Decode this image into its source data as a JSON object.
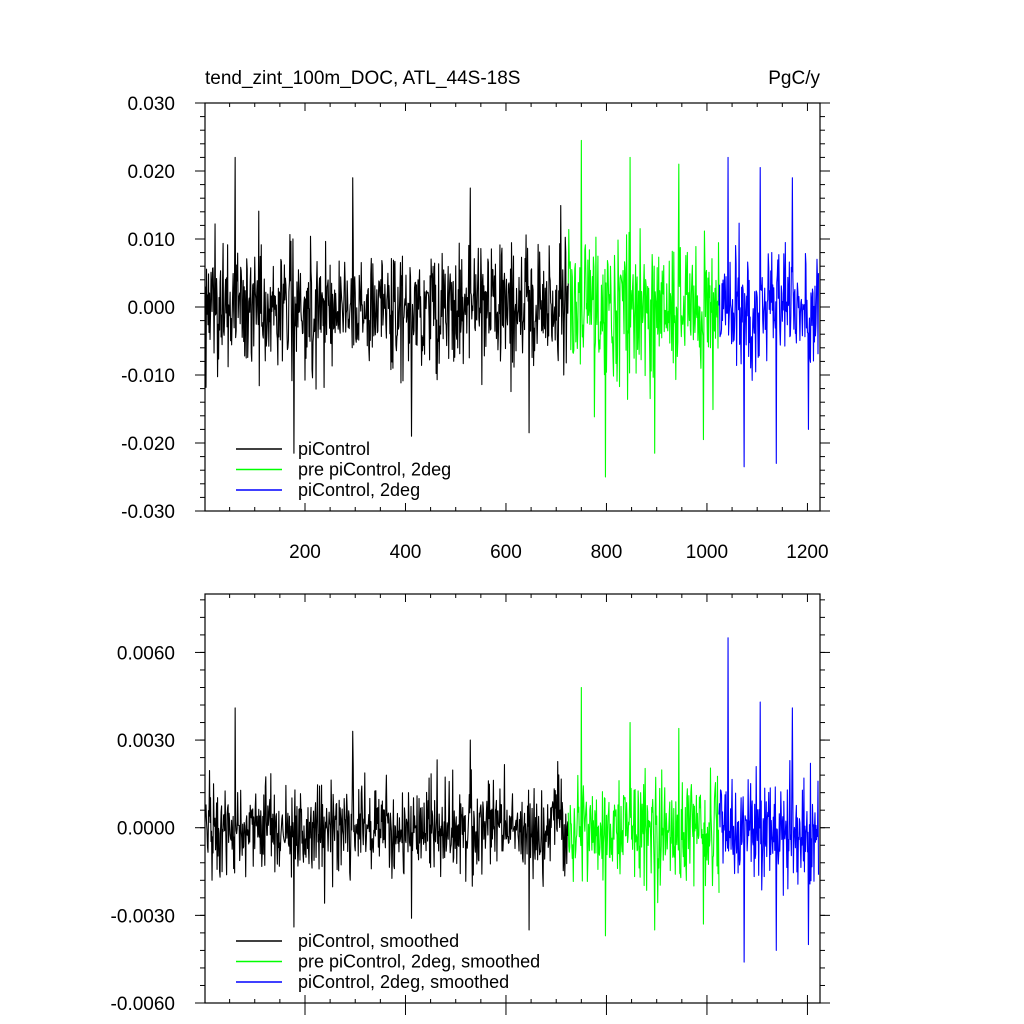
{
  "chart_data": [
    {
      "type": "line",
      "title": "tend_zint_100m_DOC, ATL_44S-18S",
      "units_label": "PgC/y",
      "xlabel": "",
      "ylabel": "",
      "xlim": [
        1,
        1225
      ],
      "ylim": [
        -0.03,
        0.03
      ],
      "x_ticks": [
        200,
        400,
        600,
        800,
        1000,
        1200
      ],
      "x_tick_labels": [
        "200",
        "400",
        "600",
        "800",
        "1000",
        "1200"
      ],
      "y_ticks": [
        -0.03,
        -0.02,
        -0.01,
        0.0,
        0.01,
        0.02,
        0.03
      ],
      "y_tick_labels": [
        "-0.030",
        "-0.020",
        "-0.010",
        "0.000",
        "0.010",
        "0.020",
        "0.030"
      ],
      "grid": false,
      "legend_position": "bottom-left",
      "series": [
        {
          "name": "piControl",
          "color": "#000000",
          "x_range": [
            1,
            724
          ],
          "amplitude": 0.0085,
          "peak_values": [
            0.022,
            -0.0215,
            0.019,
            -0.019,
            0.0175,
            -0.0185
          ]
        },
        {
          "name": "pre piControl, 2deg",
          "color": "#00ff00",
          "x_range": [
            724,
            1024
          ],
          "amplitude": 0.0095,
          "peak_values": [
            0.0245,
            -0.025,
            0.022,
            -0.0215,
            0.021,
            -0.0195
          ]
        },
        {
          "name": "piControl, 2deg",
          "color": "#0000ff",
          "x_range": [
            1024,
            1222
          ],
          "amplitude": 0.0085,
          "peak_values": [
            0.022,
            -0.0235,
            0.0205,
            -0.023,
            0.019,
            -0.018
          ]
        }
      ]
    },
    {
      "type": "line",
      "title": "",
      "xlabel": "",
      "ylabel": "",
      "xlim": [
        1,
        1225
      ],
      "ylim": [
        -0.006,
        0.008
      ],
      "x_ticks": [
        200,
        400,
        600,
        800,
        1000,
        1200
      ],
      "x_tick_labels": [],
      "y_ticks": [
        -0.006,
        -0.003,
        0.0,
        0.003,
        0.006
      ],
      "y_tick_labels": [
        "-0.0060",
        "-0.0030",
        "0.0000",
        "0.0030",
        "0.0060"
      ],
      "grid": false,
      "legend_position": "bottom-left",
      "series": [
        {
          "name": "piControl, smoothed",
          "color": "#000000",
          "x_range": [
            1,
            724
          ],
          "amplitude": 0.0014,
          "peak_values": [
            0.0041,
            -0.0034,
            0.0033,
            -0.0031,
            0.003,
            -0.0035
          ]
        },
        {
          "name": "pre piControl, 2deg, smoothed",
          "color": "#00ff00",
          "x_range": [
            724,
            1024
          ],
          "amplitude": 0.0017,
          "peak_values": [
            0.0048,
            -0.0037,
            0.0036,
            -0.0035,
            0.0034,
            -0.0033
          ]
        },
        {
          "name": "piControl, 2deg, smoothed",
          "color": "#0000ff",
          "x_range": [
            1024,
            1222
          ],
          "amplitude": 0.0017,
          "peak_values": [
            0.0065,
            -0.0046,
            0.0043,
            -0.0042,
            0.0041,
            -0.004
          ]
        }
      ]
    }
  ]
}
